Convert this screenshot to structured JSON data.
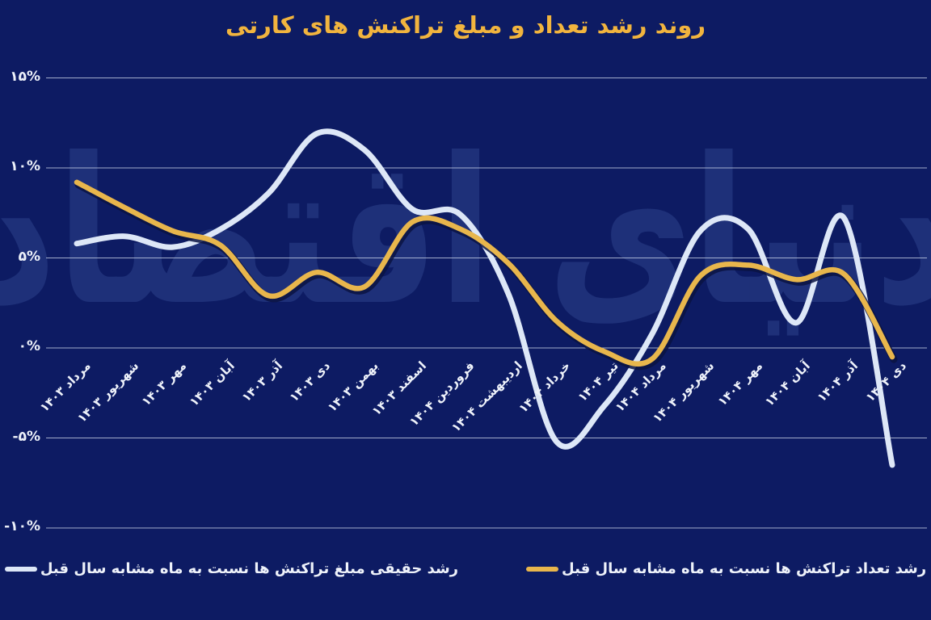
{
  "title": "روند رشد تعداد و مبلغ تراکنش های کارتی",
  "watermark": "دنیای اقتصاد",
  "colors": {
    "background": "#0d1b63",
    "title": "#f1b43e",
    "gridline": "#c6d0e6",
    "axis_text": "#eef2fa",
    "watermark": "#4563ac",
    "amount_line": "#dde7f7",
    "count_line": "#e8b64c",
    "count_line_shadow": "#0a1342"
  },
  "y_axis": {
    "tick_labels": [
      "۱۵%",
      "۱۰%",
      "۵%",
      "۰%",
      "-۵%",
      "-۱۰%"
    ],
    "tick_values": [
      15,
      10,
      5,
      0,
      -5,
      -10
    ]
  },
  "chart_data": {
    "type": "line",
    "title": "روند رشد تعداد و مبلغ تراکنش های کارتی",
    "unit": "%",
    "ylim": [
      -10,
      15
    ],
    "grid": true,
    "legend_position": "bottom",
    "x_tick_rotation_deg": -45,
    "categories": [
      "مرداد ۱۴۰۳",
      "شهریور ۱۴۰۳",
      "مهر ۱۴۰۳",
      "آبان ۱۴۰۳",
      "آذر ۱۴۰۳",
      "دی ۱۴۰۳",
      "بهمن ۱۴۰۳",
      "اسفند ۱۴۰۳",
      "فروردین ۱۴۰۴",
      "اردیبهشت ۱۴۰۴",
      "خرداد ۱۴۰۴",
      "تیر ۱۴۰۴",
      "مرداد ۱۴۰۴",
      "شهریور ۱۴۰۴",
      "مهر ۱۴۰۴",
      "آبان ۱۴۰۴",
      "آذر ۱۴۰۴",
      "دی ۱۴۰۴"
    ],
    "series": [
      {
        "name": "رشد حقیقی مبلغ تراکنش ها نسبت به ماه مشابه سال قبل",
        "color": "#dde7f7",
        "values": [
          5.8,
          6.2,
          5.6,
          6.6,
          8.6,
          11.9,
          11.0,
          7.7,
          7.4,
          3.0,
          -5.2,
          -3.2,
          0.8,
          6.5,
          6.6,
          1.4,
          7.2,
          -6.5
        ]
      },
      {
        "name": "رشد تعداد تراکنش ها نسبت به ماه مشابه سال قبل",
        "color": "#e8b64c",
        "values": [
          9.2,
          7.8,
          6.5,
          5.7,
          2.9,
          4.2,
          3.4,
          7.0,
          6.6,
          4.7,
          1.5,
          -0.2,
          -0.6,
          4.0,
          4.6,
          3.8,
          4.1,
          -0.5
        ]
      }
    ]
  }
}
